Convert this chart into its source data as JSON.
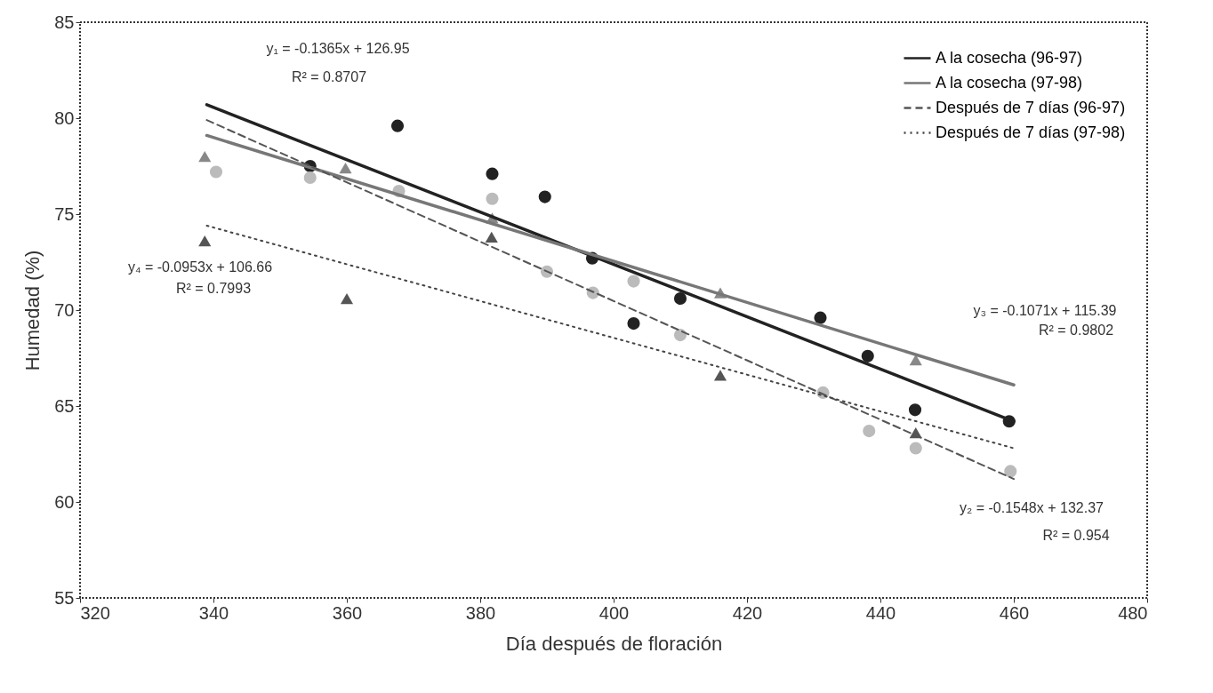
{
  "chart_data": {
    "type": "scatter",
    "xlabel": "Día después de floración",
    "ylabel": "Humedad (%)",
    "xlim": [
      320,
      480
    ],
    "xticks": [
      320,
      340,
      360,
      380,
      400,
      420,
      440,
      460,
      480
    ],
    "ylim": [
      55,
      85
    ],
    "yticks": [
      55,
      60,
      65,
      70,
      75,
      80,
      85
    ],
    "grid": false,
    "legend": "top right",
    "series": [
      {
        "marker": "circle",
        "color": "#222222",
        "x": [
          354.5,
          367.6,
          381.8,
          389.7,
          396.8,
          403.0,
          410.0,
          431.0,
          438.1,
          445.2,
          459.3
        ],
        "values": [
          77.5,
          79.6,
          77.1,
          75.9,
          72.7,
          69.3,
          70.6,
          69.6,
          67.6,
          64.8,
          64.2
        ]
      },
      {
        "marker": "triangle",
        "color": "#888888",
        "x": [
          338.7,
          359.8,
          381.8,
          416.0,
          445.3
        ],
        "values": [
          78.0,
          77.4,
          74.8,
          70.9,
          67.4
        ]
      },
      {
        "marker": "circle",
        "color": "#bbbbbb",
        "x": [
          340.4,
          354.5,
          367.8,
          381.8,
          390.0,
          396.9,
          403.0,
          410.0,
          431.4,
          438.3,
          445.3,
          459.5
        ],
        "values": [
          77.2,
          76.9,
          76.2,
          75.8,
          72.0,
          70.9,
          71.5,
          68.7,
          65.7,
          63.7,
          62.8,
          61.6
        ]
      },
      {
        "marker": "triangle",
        "color": "#555555",
        "x": [
          338.7,
          360.0,
          381.7,
          416.0,
          445.3
        ],
        "values": [
          73.6,
          70.6,
          73.8,
          66.6,
          63.6
        ]
      },
      {
        "type": "line",
        "name": "A la cosecha (96-97)",
        "color": "#222222",
        "line_style": "solid",
        "x": [
          339,
          460
        ],
        "values": [
          80.7,
          64.2
        ]
      },
      {
        "type": "line",
        "name": "A la cosecha (97-98)",
        "color": "#777777",
        "line_style": "solid",
        "x": [
          339,
          460
        ],
        "values": [
          79.1,
          66.1
        ]
      },
      {
        "type": "line",
        "name": "Después de 7 días (96-97)",
        "color": "#555555",
        "line_style": "dashed",
        "x": [
          339,
          460
        ],
        "values": [
          79.9,
          61.2
        ]
      },
      {
        "type": "line",
        "name": "Después de 7 días (97-98)",
        "color": "#444444",
        "line_style": "dotted",
        "x": [
          339,
          460
        ],
        "values": [
          74.4,
          62.8
        ]
      }
    ],
    "annotations": [
      "y₁ = -0.1365x + 126.95",
      "R² = 0.8707",
      "y₄ = -0.0953x + 106.66",
      "R² = 0.7993",
      "y₃ = -0.1071x + 115.39",
      "R² = 0.9802",
      "y₂ = -0.1548x + 132.37",
      "R² = 0.954"
    ]
  }
}
